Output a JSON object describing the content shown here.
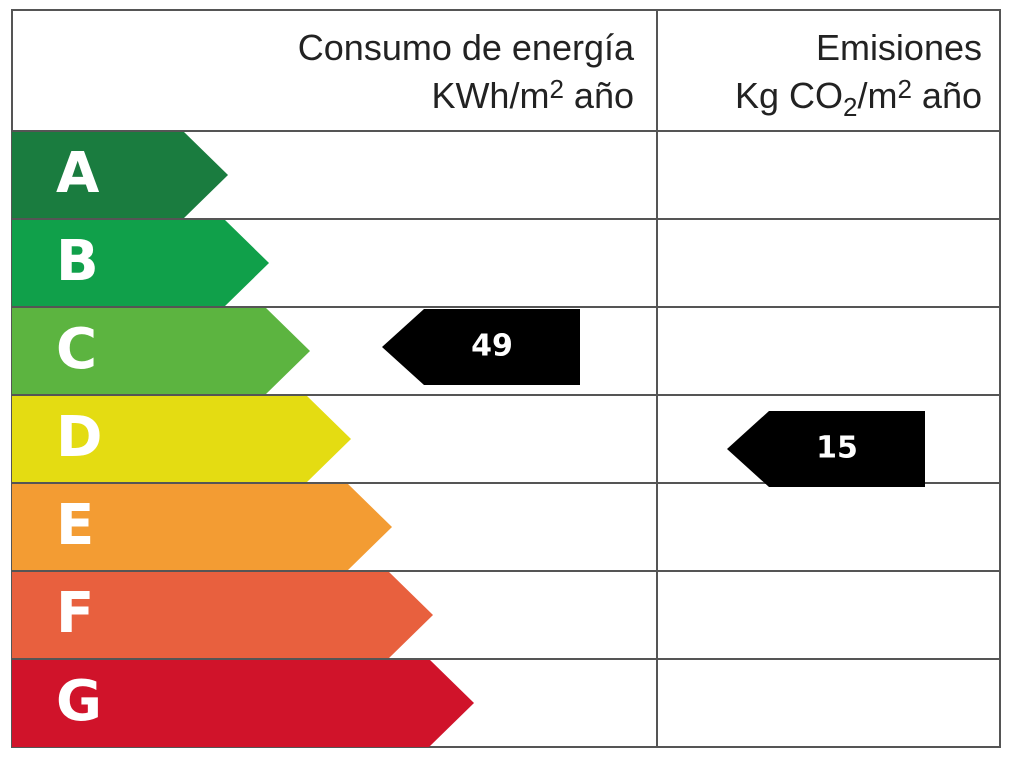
{
  "header": {
    "consumption": {
      "title": "Consumo de energía",
      "unit": [
        "KWh/m",
        "2",
        " año"
      ]
    },
    "emissions": {
      "title": "Emisiones",
      "unit": [
        "Kg CO",
        "2",
        "/m",
        "2",
        " año"
      ]
    }
  },
  "ratings": [
    "A",
    "B",
    "C",
    "D",
    "E",
    "F",
    "G"
  ],
  "consumption": {
    "rating": "C",
    "value": 49
  },
  "emissions": {
    "rating": "D",
    "value": 15
  }
}
